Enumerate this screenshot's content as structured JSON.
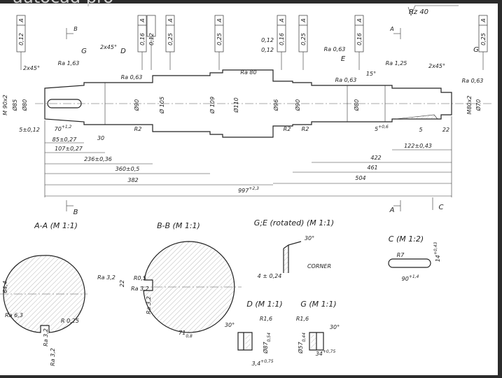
{
  "labels": [
    "autocad pro",
    "Rz 40",
    "B",
    "A",
    "G",
    "2x45°",
    "D",
    "2x45°",
    "Ra 1,63",
    "Ra 0,63",
    "Ra 80",
    "0,12",
    "0,12",
    "Ra 0,63",
    "E",
    "Ra 1,25",
    "15°",
    "Ra 0,63",
    "2x45°",
    "G",
    "Ra 0,63",
    "M 90x2",
    "Ø85",
    "Ø80",
    "Ø90",
    "Ø 105",
    "Ø 109",
    "Ø110",
    "Ø96",
    "Ø90",
    "Ø80",
    "M80x2",
    "Ø70",
    "R2",
    "R2",
    "R2",
    "5±0,12",
    "85±0,27",
    "30",
    "107±0,27",
    "236±0,36",
    "360±0,5",
    "382",
    "504",
    "461",
    "422",
    "122±0,43",
    "5",
    "22",
    "B",
    "A",
    "C",
    "A-A (M 1:1)",
    "B-B (M 1:1)",
    "G;E (rotated) (M 1:1)",
    "C (M 1:2)",
    "64,4",
    "Ra 6,3",
    "R 0,25",
    "Ra 3,2",
    "Ra 3,2",
    "Ra 3,2",
    "R0,5",
    "22",
    "Ra 3,2",
    "Ra 3,2",
    "30°",
    "CORNER",
    "4 ± 0,24",
    "R7",
    "D (M 1:1)",
    "G (M 1:1)",
    "30°",
    "R1,6",
    "R1,6",
    "30°"
  ],
  "toleranced": [
    {
      "value": "70",
      "tol": "+1,2"
    },
    {
      "value": "997",
      "tol": "+2,3"
    },
    {
      "value": "5",
      "tol": "+0,6"
    },
    {
      "value": "14",
      "tol": "+0,43"
    },
    {
      "value": "90",
      "tol": "+1,4"
    },
    {
      "value": "71",
      "tol": "0,8"
    },
    {
      "value": "Ø87",
      "tol": "0,54"
    },
    {
      "value": "3,4",
      "tol": "+0,75"
    },
    {
      "value": "Ø57",
      "tol": "0,44"
    },
    {
      "value": "34",
      "tol": "+0,75"
    }
  ],
  "frames": [
    {
      "tol": "0,12",
      "datum": "A"
    },
    {
      "tol": "0,16",
      "datum": "A"
    },
    {
      "tol": "0,12"
    },
    {
      "tol": "0,25",
      "datum": "A"
    },
    {
      "tol": "0,25",
      "datum": "A"
    },
    {
      "tol": "0,16",
      "datum": "A"
    },
    {
      "tol": "0,25",
      "datum": "A"
    },
    {
      "tol": "0,16",
      "datum": "A"
    },
    {
      "tol": "0,25",
      "datum": "A"
    }
  ]
}
